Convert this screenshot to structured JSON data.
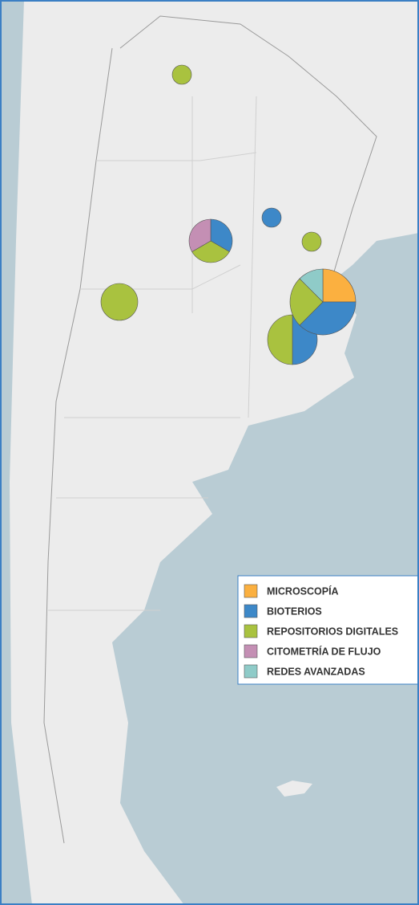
{
  "legend": {
    "items": [
      {
        "label": "MICROSCOPÍA",
        "color": "#fbb040"
      },
      {
        "label": "BIOTERIOS",
        "color": "#3d88c8"
      },
      {
        "label": "REPOSITORIOS DIGITALES",
        "color": "#a9c23f"
      },
      {
        "label": "CITOMETRÍA DE FLUJO",
        "color": "#c48fb4"
      },
      {
        "label": "REDES AVANZADAS",
        "color": "#8fcbc8"
      }
    ]
  },
  "pies": [
    {
      "values": [
        0,
        0,
        1,
        0,
        0
      ]
    },
    {
      "values": [
        0,
        1,
        1,
        1,
        0
      ]
    },
    {
      "values": [
        0,
        1,
        0,
        0,
        0
      ]
    },
    {
      "values": [
        0,
        0,
        1,
        0,
        0
      ]
    },
    {
      "values": [
        0,
        0,
        2,
        0,
        0
      ]
    },
    {
      "values": [
        0,
        2,
        2,
        0,
        0
      ]
    },
    {
      "values": [
        2,
        3,
        2,
        0,
        1
      ]
    }
  ]
}
